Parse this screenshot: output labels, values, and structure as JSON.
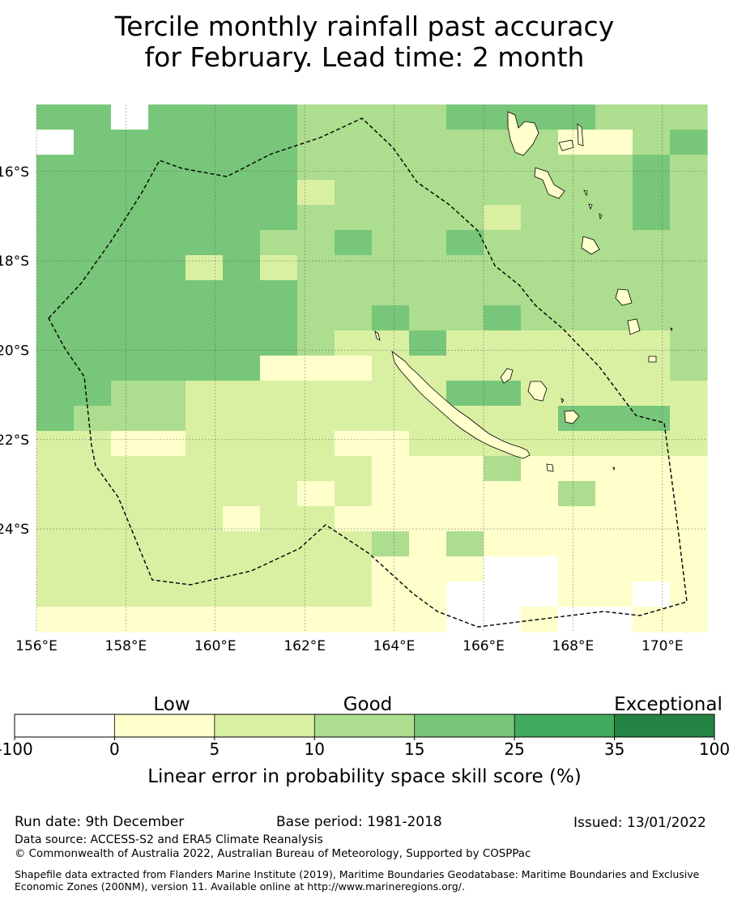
{
  "title": {
    "line1": "Tercile monthly rainfall past accuracy",
    "line2": "for February. Lead time: 2 month"
  },
  "map": {
    "lon_ticks": [
      "156°E",
      "158°E",
      "160°E",
      "162°E",
      "164°E",
      "166°E",
      "168°E",
      "170°E"
    ],
    "lat_ticks": [
      "16°S",
      "18°S",
      "20°S",
      "22°S",
      "24°S"
    ],
    "lon_range": [
      156,
      171
    ],
    "lat_range": [
      -26.3,
      -14.5
    ],
    "grid_cols": 18,
    "grid_rows": 21,
    "cell_class_rows": [
      "444444433334444333",
      "444444433333333334",
      "444444433333333343",
      "444444433333333343",
      "444444433333333343",
      "444444333333333333",
      "444444333333333333",
      "444444433333333333",
      "444444433333333333",
      "444444432222222223",
      "444444433222222223",
      "443322222222222222",
      "433322222222222222",
      "222222222222222222",
      "222222222111111111",
      "222222222111111111",
      "222222222111111111",
      "222222222111111111",
      "222222222111111111",
      "222222222111111111",
      "111111111111111111"
    ],
    "cell_overrides": [
      [
        0,
        2,
        0
      ],
      [
        1,
        14,
        1
      ],
      [
        1,
        15,
        1
      ],
      [
        1,
        0,
        0
      ],
      [
        3,
        7,
        2
      ],
      [
        4,
        12,
        2
      ],
      [
        5,
        8,
        4
      ],
      [
        5,
        11,
        4
      ],
      [
        6,
        4,
        2
      ],
      [
        6,
        6,
        2
      ],
      [
        8,
        9,
        4
      ],
      [
        8,
        12,
        4
      ],
      [
        9,
        10,
        4
      ],
      [
        10,
        6,
        1
      ],
      [
        10,
        7,
        1
      ],
      [
        10,
        8,
        1
      ],
      [
        11,
        11,
        4
      ],
      [
        11,
        12,
        4
      ],
      [
        12,
        14,
        4
      ],
      [
        12,
        15,
        4
      ],
      [
        12,
        16,
        4
      ],
      [
        13,
        2,
        1
      ],
      [
        13,
        3,
        1
      ],
      [
        13,
        8,
        1
      ],
      [
        13,
        9,
        1
      ],
      [
        14,
        12,
        3
      ],
      [
        15,
        7,
        1
      ],
      [
        15,
        14,
        3
      ],
      [
        16,
        5,
        1
      ],
      [
        16,
        8,
        1
      ],
      [
        17,
        9,
        3
      ],
      [
        17,
        11,
        3
      ],
      [
        18,
        12,
        0
      ],
      [
        18,
        13,
        0
      ],
      [
        19,
        11,
        0
      ],
      [
        19,
        12,
        0
      ],
      [
        19,
        13,
        0
      ],
      [
        19,
        16,
        0
      ],
      [
        20,
        11,
        0
      ],
      [
        20,
        12,
        0
      ],
      [
        20,
        14,
        0
      ],
      [
        20,
        15,
        0
      ]
    ]
  },
  "colorbar": {
    "category_labels": [
      "Low",
      "Good",
      "Exceptional"
    ],
    "tick_labels": [
      "-100",
      "0",
      "5",
      "10",
      "15",
      "25",
      "35",
      "100"
    ],
    "colors": [
      "#ffffff",
      "#ffffcc",
      "#d9f0a3",
      "#addd8e",
      "#78c679",
      "#41ab5d",
      "#238443"
    ],
    "label": "Linear error in probability space skill score (%)"
  },
  "footer": {
    "run_date": "Run date: 9th December",
    "base_period": "Base period: 1981-2018",
    "issued": "Issued: 13/01/2022",
    "data_source": "Data source: ACCESS-S2 and ERA5 Climate Reanalysis",
    "copyright": "© Commonwealth of Australia 2022, Australian Bureau of Meteorology, Supported by COSPPac",
    "shapefile": "Shapefile data extracted from Flanders Marine Institute (2019), Maritime Boundaries Geodatabase: Maritime Boundaries and Exclusive Economic Zones (200NM), version 11. Available online at http://www.marineregions.org/."
  }
}
